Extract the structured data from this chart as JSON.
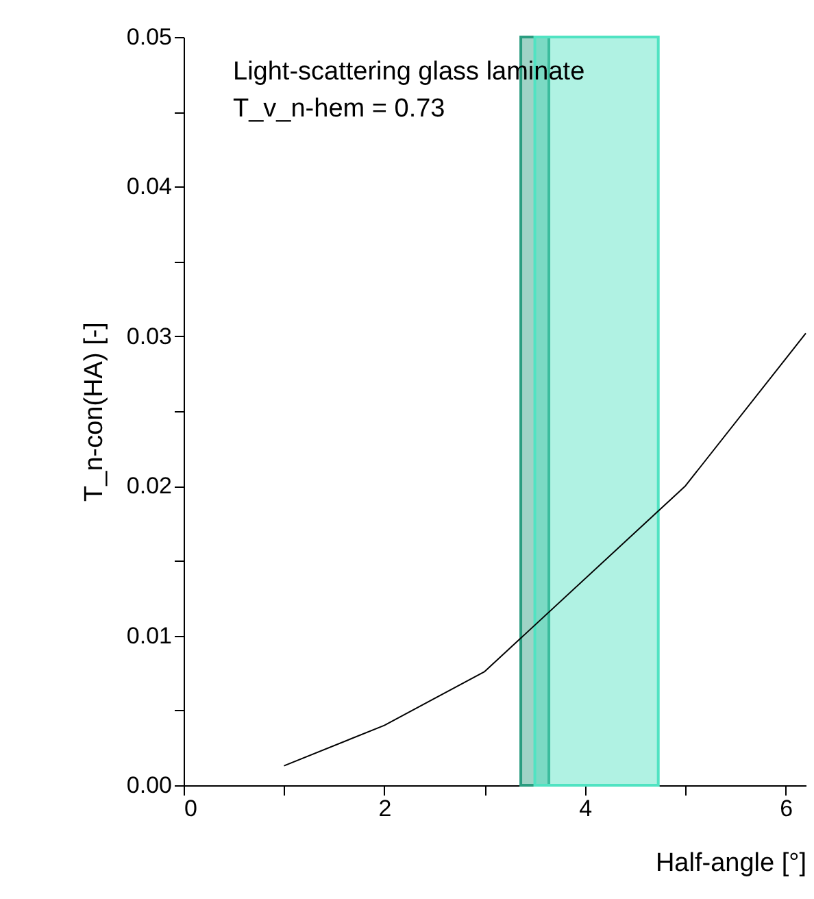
{
  "chart_data": {
    "type": "line",
    "xlabel": "Half-angle [°]",
    "ylabel": "T_n-con(HA) [-]",
    "x": [
      1,
      2,
      3,
      5,
      6.2
    ],
    "series": [
      {
        "color": "#000000",
        "values": [
          0.0013,
          0.004,
          0.0076,
          0.02,
          0.0302
        ]
      }
    ],
    "xlim": [
      0,
      6.2
    ],
    "ylim": [
      0,
      0.05
    ],
    "xticks": [
      0,
      {
        "value": 1,
        "label": null
      },
      2,
      {
        "value": 3,
        "label": null
      },
      4,
      {
        "value": 5,
        "label": null
      },
      6
    ],
    "yticks": [
      {
        "value": 0,
        "label": "0.00"
      },
      {
        "value": 0.005,
        "label": null
      },
      {
        "value": 0.01,
        "label": "0.01"
      },
      {
        "value": 0.015,
        "label": null
      },
      {
        "value": 0.02,
        "label": "0.02"
      },
      {
        "value": 0.025,
        "label": null
      },
      {
        "value": 0.03,
        "label": "0.03"
      },
      {
        "value": 0.035,
        "label": null
      },
      {
        "value": 0.04,
        "label": "0.04"
      },
      {
        "value": 0.045,
        "label": null
      },
      {
        "value": 0.05,
        "label": "0.05"
      }
    ],
    "bands": [
      {
        "axis": "x",
        "from": 3.36,
        "to": 3.64,
        "color": "#2a9d80"
      },
      {
        "axis": "x",
        "from": 3.5,
        "to": 4.73,
        "color": "#50e3c2"
      }
    ],
    "annotations": [
      "Light-scattering glass laminate",
      "T_v_n-hem = 0.73"
    ],
    "grid": false,
    "line_style": "solid",
    "marker": "none"
  }
}
